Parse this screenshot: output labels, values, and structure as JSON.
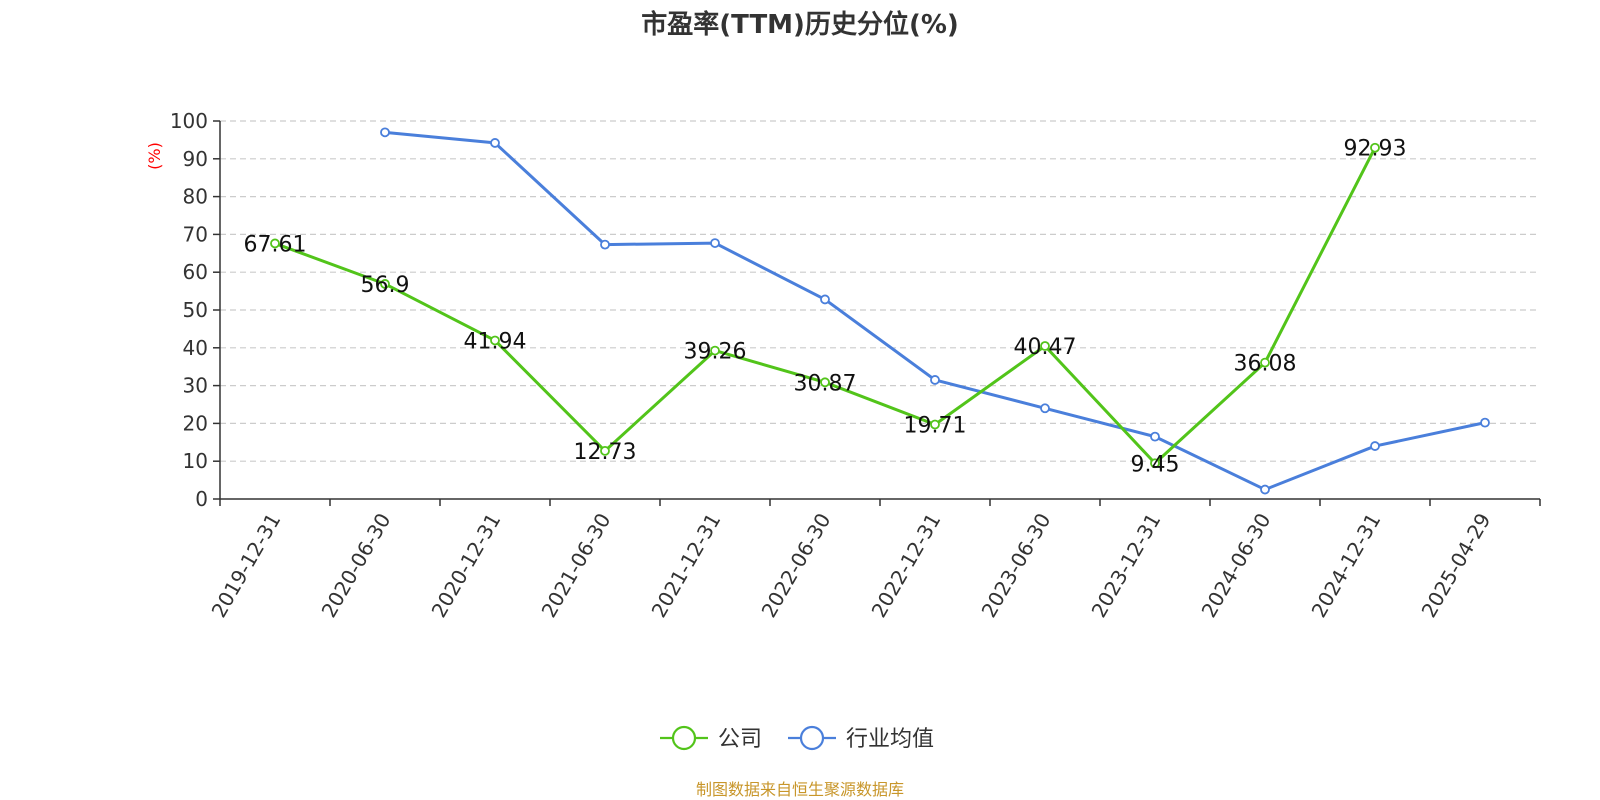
{
  "chart_data": {
    "type": "line",
    "title": "市盈率(TTM)历史分位(%)",
    "ylabel": "(%)",
    "xlabel": "",
    "ylim": [
      0,
      100
    ],
    "yticks": [
      0,
      10,
      20,
      30,
      40,
      50,
      60,
      70,
      80,
      90,
      100
    ],
    "categories": [
      "2019-12-31",
      "2020-06-30",
      "2020-12-31",
      "2021-06-30",
      "2021-12-31",
      "2022-06-30",
      "2022-12-31",
      "2023-06-30",
      "2023-12-31",
      "2024-06-30",
      "2024-12-31",
      "2025-04-29"
    ],
    "grid": true,
    "legend_position": "bottom",
    "series": [
      {
        "name": "公司",
        "color": "#52c41a",
        "show_labels": true,
        "values": [
          67.61,
          56.9,
          41.94,
          12.73,
          39.26,
          30.87,
          19.71,
          40.47,
          9.45,
          36.08,
          92.93,
          null
        ]
      },
      {
        "name": "行业均值",
        "color": "#4a7fdb",
        "show_labels": false,
        "values": [
          null,
          97,
          94.2,
          67.3,
          67.7,
          52.8,
          31.5,
          24,
          16.5,
          2.5,
          14,
          20.2
        ]
      }
    ],
    "source": "制图数据来自恒生聚源数据库"
  }
}
